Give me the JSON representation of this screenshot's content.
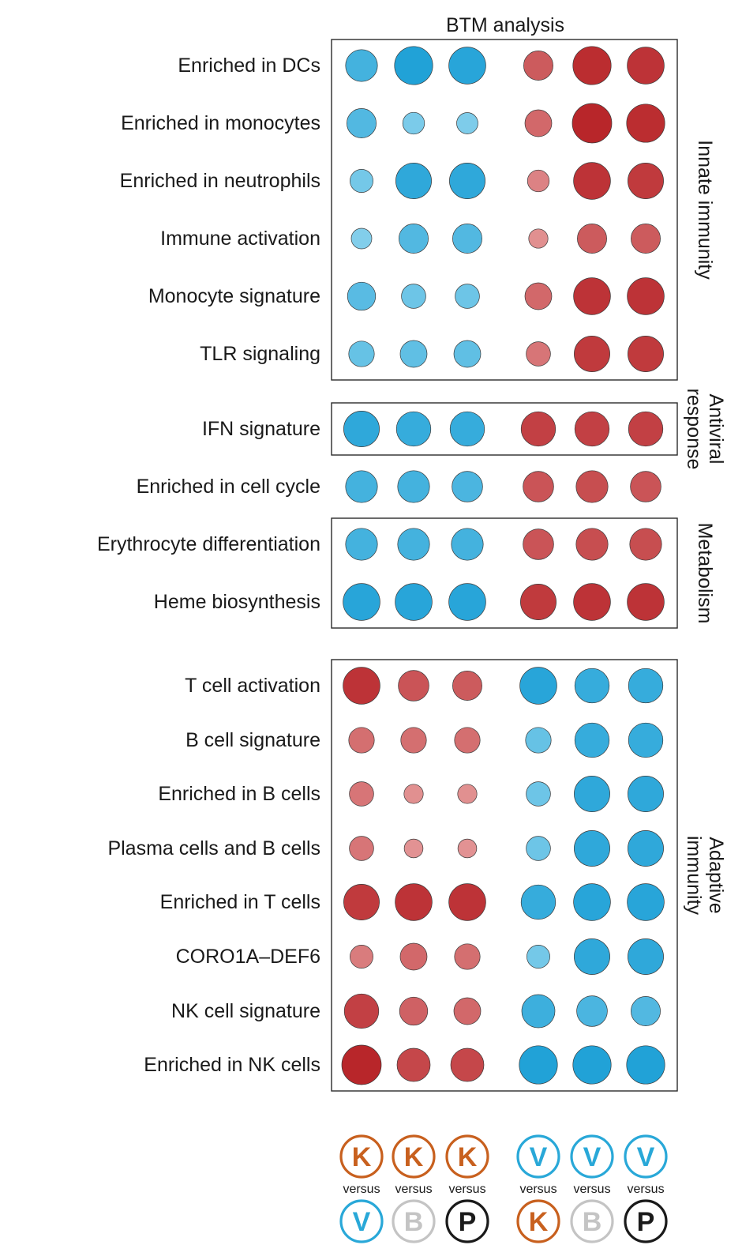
{
  "chart_data": {
    "type": "scatter",
    "title": "BTM analysis",
    "rows": [
      "Enriched in DCs",
      "Enriched in monocytes",
      "Enriched in neutrophils",
      "Immune activation",
      "Monocyte signature",
      "TLR signaling",
      "IFN signature",
      "Enriched in cell cycle",
      "Erythrocyte differentiation",
      "Heme biosynthesis",
      "T cell activation",
      "B cell signature",
      "Enriched in B cells",
      "Plasma cells and B cells",
      "Enriched in T cells",
      "CORO1A–DEF6",
      "NK cell signature",
      "Enriched in NK cells"
    ],
    "comparisons": [
      {
        "top": "K",
        "versus": "versus",
        "bottom": "V"
      },
      {
        "top": "K",
        "versus": "versus",
        "bottom": "B"
      },
      {
        "top": "K",
        "versus": "versus",
        "bottom": "P"
      },
      {
        "top": "V",
        "versus": "versus",
        "bottom": "K"
      },
      {
        "top": "V",
        "versus": "versus",
        "bottom": "B"
      },
      {
        "top": "V",
        "versus": "versus",
        "bottom": "P"
      }
    ],
    "badge_colors": {
      "K": "#c8601e",
      "V": "#29a8d8",
      "B": "#c4c4c4",
      "P": "#1a1a1a"
    },
    "groups": [
      {
        "label": "Innate immunity",
        "rows": [
          0,
          5
        ],
        "boxed": true
      },
      {
        "label": "Antiviral response",
        "rows": [
          6,
          6
        ],
        "boxed": true
      },
      {
        "label": "",
        "rows": [
          7,
          7
        ],
        "boxed": false
      },
      {
        "label": "Metabolism",
        "rows": [
          8,
          9
        ],
        "boxed": true
      },
      {
        "label": "Adaptive immunity",
        "rows": [
          10,
          17
        ],
        "boxed": true
      }
    ],
    "colors": {
      "positive": "#b8262a",
      "negative": "#1a9fd6"
    },
    "values": [
      [
        -0.7,
        -0.95,
        -0.9,
        0.6,
        0.95,
        0.9
      ],
      [
        -0.6,
        -0.3,
        -0.28,
        0.5,
        1.0,
        0.95
      ],
      [
        -0.35,
        -0.85,
        -0.85,
        0.3,
        0.9,
        0.85
      ],
      [
        -0.25,
        -0.6,
        -0.6,
        0.2,
        0.6,
        0.6
      ],
      [
        -0.55,
        -0.4,
        -0.4,
        0.5,
        0.9,
        0.9
      ],
      [
        -0.45,
        -0.5,
        -0.5,
        0.4,
        0.85,
        0.85
      ],
      [
        -0.85,
        -0.8,
        -0.8,
        0.8,
        0.8,
        0.8
      ],
      [
        -0.7,
        -0.7,
        -0.65,
        0.65,
        0.7,
        0.65
      ],
      [
        -0.7,
        -0.7,
        -0.7,
        0.65,
        0.7,
        0.7
      ],
      [
        -0.9,
        -0.9,
        -0.9,
        0.85,
        0.9,
        0.9
      ],
      [
        0.9,
        0.65,
        0.6,
        -0.9,
        -0.8,
        -0.8
      ],
      [
        0.45,
        0.45,
        0.45,
        -0.45,
        -0.8,
        -0.8
      ],
      [
        0.4,
        0.2,
        0.2,
        -0.4,
        -0.85,
        -0.85
      ],
      [
        0.4,
        0.18,
        0.18,
        -0.4,
        -0.85,
        -0.85
      ],
      [
        0.85,
        0.9,
        0.9,
        -0.8,
        -0.9,
        -0.9
      ],
      [
        0.35,
        0.5,
        0.45,
        -0.35,
        -0.85,
        -0.85
      ],
      [
        0.8,
        0.55,
        0.5,
        -0.75,
        -0.65,
        -0.6
      ],
      [
        1.0,
        0.75,
        0.75,
        -0.95,
        -0.95,
        -0.95
      ]
    ]
  }
}
